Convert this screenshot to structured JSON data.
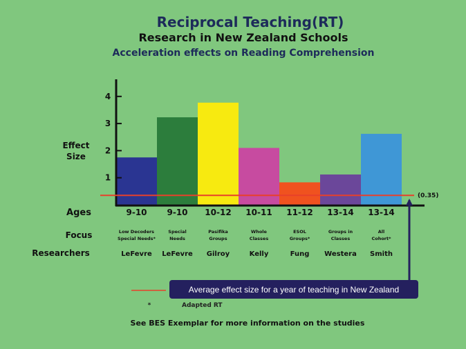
{
  "header": {
    "title": "Reciprocal Teaching(RT)",
    "subtitle": "Research in New Zealand Schools",
    "subtitle2": "Acceleration effects on Reading Comprehension"
  },
  "colors": {
    "background": "#80c77e",
    "title": "#1d2b5a",
    "reference_line": "#e8402a",
    "callout": "#24205e"
  },
  "chart_data": {
    "type": "bar",
    "ylabel": "Effect Size",
    "ylim": [
      0,
      4.4
    ],
    "yticks": [
      "1",
      "2",
      "3",
      "4"
    ],
    "row_labels": {
      "ages": "Ages",
      "focus": "Focus",
      "researchers": "Researchers"
    },
    "categories": [
      "9-10",
      "9-10",
      "10-12",
      "10-11",
      "11-12",
      "13-14",
      "13-14"
    ],
    "focus": [
      [
        "Low Decoders",
        "Special Needs*"
      ],
      [
        "Special",
        "Needs"
      ],
      [
        "Pasifika",
        "Groups"
      ],
      [
        "Whole",
        "Classes"
      ],
      [
        "ESOL",
        "Groups*"
      ],
      [
        "Groups in",
        "Classes"
      ],
      [
        "All",
        "Cohort*"
      ]
    ],
    "researchers": [
      "LeFevre",
      "LeFevre",
      "Gilroy",
      "Kelly",
      "Fung",
      "Westera",
      "Smith"
    ],
    "values": [
      1.75,
      3.23,
      3.77,
      2.1,
      0.83,
      1.12,
      2.62
    ],
    "bar_colors": [
      "#2a3592",
      "#2c7d3c",
      "#f7ea10",
      "#c74ba0",
      "#f0521f",
      "#6b479a",
      "#3f97d6"
    ],
    "reference": {
      "value": 0.35,
      "label": "(0.35)"
    },
    "grid": false
  },
  "legend": {
    "reference_text": "Average effect size for a year of teaching in New Zealand",
    "asterisk": "*",
    "asterisk_text": "Adapted RT"
  },
  "footer": "See BES Exemplar for more information on the studies"
}
